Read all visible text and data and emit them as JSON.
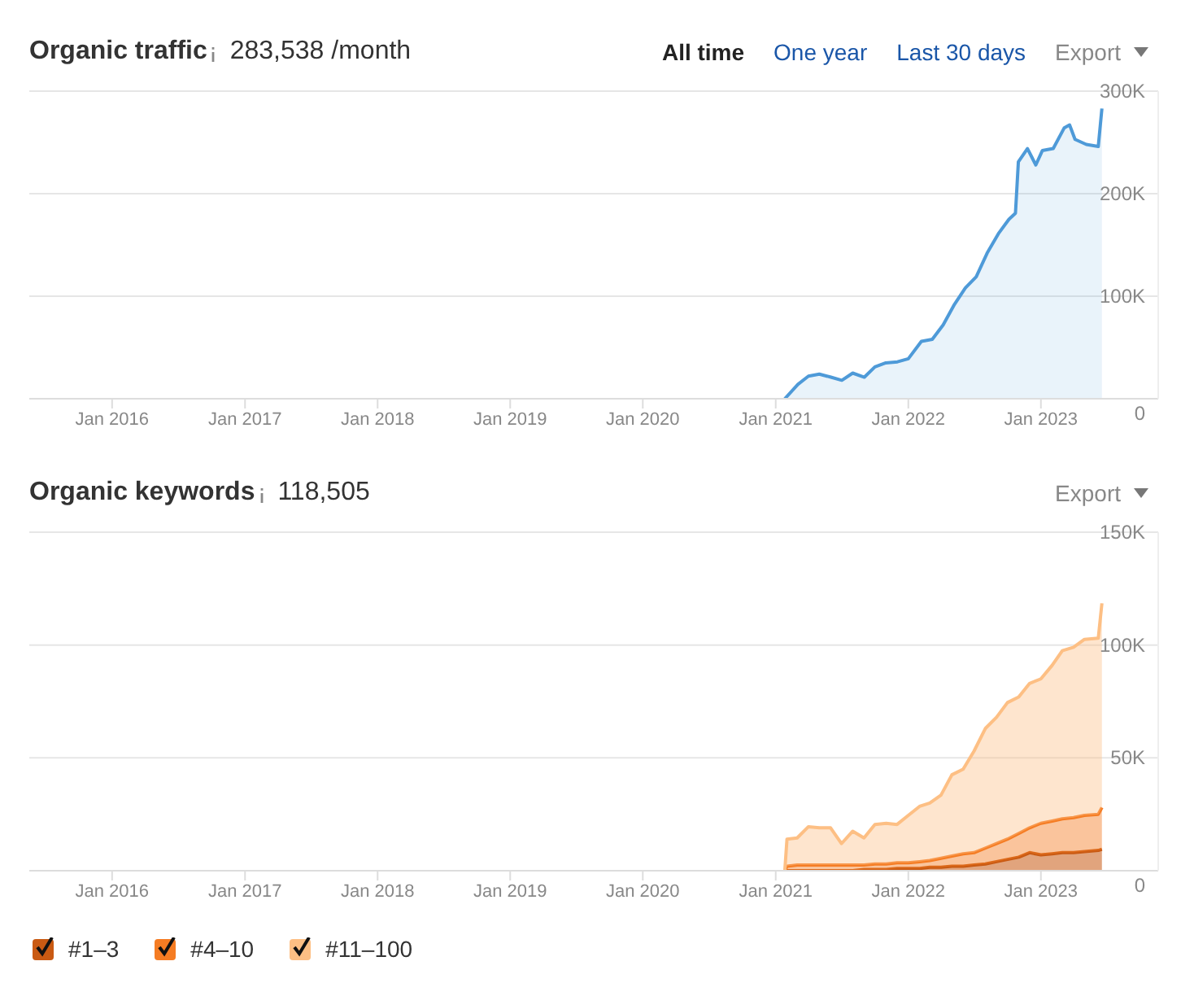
{
  "chart_data": [
    {
      "type": "area",
      "title": "Organic traffic",
      "subtitle": "283,538 /month",
      "annotations": [
        "All time",
        "One year",
        "Last 30 days",
        "Export"
      ],
      "x": [
        "2021-01-26",
        "2021-03-03",
        "2021-04-01",
        "2021-05-01",
        "2021-06-02",
        "2021-07-02",
        "2021-08-01",
        "2021-09-02",
        "2021-10-01",
        "2021-10-31",
        "2021-12-02",
        "2022-01-01",
        "2022-02-06",
        "2022-03-08",
        "2022-04-07",
        "2022-05-08",
        "2022-06-07",
        "2022-07-07",
        "2022-08-06",
        "2022-09-06",
        "2022-10-05",
        "2022-10-23",
        "2022-10-31",
        "2022-11-25",
        "2022-12-18",
        "2023-01-05",
        "2023-02-04",
        "2023-03-06",
        "2023-03-21",
        "2023-04-05",
        "2023-05-06",
        "2023-06-08",
        "2023-06-18"
      ],
      "series": [
        {
          "color": "#4e9ad8",
          "values": [
            0,
            14000,
            22000,
            24000,
            21000,
            18000,
            25000,
            21000,
            31000,
            35000,
            36000,
            39000,
            56000,
            58000,
            72000,
            92000,
            108000,
            119000,
            142000,
            161000,
            175000,
            181000,
            231000,
            244000,
            228000,
            242000,
            244000,
            264000,
            267000,
            253000,
            248000,
            246000,
            283000
          ]
        }
      ],
      "xlim": [
        "2015-05-18",
        "2023-11-20"
      ],
      "xticks": [
        {
          "value": "2016-01",
          "label": "Jan 2016"
        },
        {
          "value": "2017-01",
          "label": "Jan 2017"
        },
        {
          "value": "2018-01",
          "label": "Jan 2018"
        },
        {
          "value": "2019-01",
          "label": "Jan 2019"
        },
        {
          "value": "2020-01",
          "label": "Jan 2020"
        },
        {
          "value": "2021-01",
          "label": "Jan 2021"
        },
        {
          "value": "2022-01",
          "label": "Jan 2022"
        },
        {
          "value": "2023-01",
          "label": "Jan 2023"
        }
      ],
      "ylim": [
        0,
        300000
      ],
      "yticks": [
        {
          "value": 0,
          "label": "0"
        },
        {
          "value": 100000,
          "label": "100K"
        },
        {
          "value": 200000,
          "label": "200K"
        },
        {
          "value": 300000,
          "label": "300K"
        }
      ],
      "grid": "y"
    },
    {
      "type": "area",
      "title": "Organic keywords",
      "subtitle": "118,505",
      "annotations": [
        "Export"
      ],
      "stacked": true,
      "legend": "bottom left",
      "x": [
        "2021-01-26",
        "2021-02",
        "2021-03",
        "2021-04",
        "2021-05",
        "2021-06",
        "2021-07",
        "2021-08",
        "2021-09",
        "2021-10",
        "2021-11",
        "2021-12",
        "2022-01",
        "2022-02",
        "2022-03",
        "2022-04",
        "2022-05",
        "2022-06",
        "2022-07",
        "2022-08",
        "2022-09",
        "2022-10",
        "2022-11",
        "2022-12",
        "2023-01",
        "2023-02",
        "2023-03",
        "2023-04",
        "2023-05",
        "2023-06-08",
        "2023-06-18"
      ],
      "series": [
        {
          "name": "#1–3",
          "color": "#c95a13",
          "values": [
            0,
            0,
            0,
            0,
            0,
            0,
            0,
            0,
            500,
            500,
            500,
            1000,
            1000,
            1000,
            1500,
            1500,
            2000,
            2000,
            2500,
            3000,
            4000,
            5000,
            6000,
            8000,
            7000,
            7500,
            8000,
            8000,
            8500,
            9000,
            9500
          ]
        },
        {
          "name": "#4–10",
          "color": "#f57c23",
          "values": [
            0,
            2000,
            2500,
            2500,
            2500,
            2500,
            2500,
            2500,
            2000,
            2500,
            2500,
            2500,
            2500,
            3000,
            3000,
            4000,
            4500,
            5500,
            5500,
            7000,
            8000,
            9000,
            10500,
            11000,
            14000,
            14500,
            15000,
            15500,
            16000,
            16000,
            18500
          ]
        },
        {
          "name": "#11–100",
          "color": "#fdbf84",
          "values": [
            0,
            12000,
            12000,
            17000,
            16500,
            16500,
            9500,
            15000,
            12000,
            17500,
            18000,
            17000,
            21000,
            24500,
            25500,
            28000,
            36000,
            37500,
            45000,
            53000,
            56000,
            60500,
            60500,
            64000,
            64000,
            69000,
            74500,
            75500,
            78000,
            78000,
            90500
          ]
        }
      ],
      "xlim": [
        "2015-05-18",
        "2023-11-20"
      ],
      "xticks": [
        {
          "value": "2016-01",
          "label": "Jan 2016"
        },
        {
          "value": "2017-01",
          "label": "Jan 2017"
        },
        {
          "value": "2018-01",
          "label": "Jan 2018"
        },
        {
          "value": "2019-01",
          "label": "Jan 2019"
        },
        {
          "value": "2020-01",
          "label": "Jan 2020"
        },
        {
          "value": "2021-01",
          "label": "Jan 2021"
        },
        {
          "value": "2022-01",
          "label": "Jan 2022"
        },
        {
          "value": "2023-01",
          "label": "Jan 2023"
        }
      ],
      "ylim": [
        0,
        150000
      ],
      "yticks": [
        {
          "value": 0,
          "label": "0"
        },
        {
          "value": 50000,
          "label": "50K"
        },
        {
          "value": 100000,
          "label": "100K"
        },
        {
          "value": 150000,
          "label": "150K"
        }
      ],
      "grid": "y"
    }
  ]
}
